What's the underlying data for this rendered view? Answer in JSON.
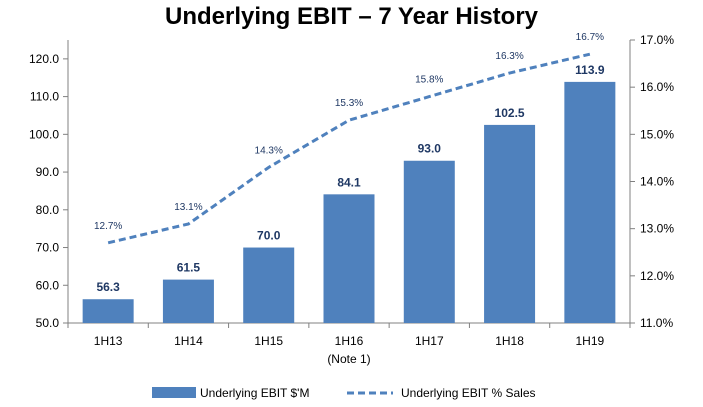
{
  "chart_data": {
    "type": "bar",
    "title": "Underlying EBIT – 7 Year History",
    "categories": [
      "1H13",
      "1H14",
      "1H15",
      "1H16",
      "1H17",
      "1H18",
      "1H19"
    ],
    "category_notes": [
      "",
      "",
      "",
      "(Note 1)",
      "",
      "",
      ""
    ],
    "series": [
      {
        "name": "Underlying EBIT $'M",
        "type": "bar",
        "axis": "left",
        "color": "#4f81bd",
        "values": [
          56.3,
          61.5,
          70.0,
          84.1,
          93.0,
          102.5,
          113.9
        ],
        "labels": [
          "56.3",
          "61.5",
          "70.0",
          "84.1",
          "93.0",
          "102.5",
          "113.9"
        ]
      },
      {
        "name": "Underlying EBIT % Sales",
        "type": "line",
        "style": "dashed",
        "axis": "right",
        "color": "#4f81bd",
        "values": [
          12.7,
          13.1,
          14.3,
          15.3,
          15.8,
          16.3,
          16.7
        ],
        "labels": [
          "12.7%",
          "13.1%",
          "14.3%",
          "15.3%",
          "15.8%",
          "16.3%",
          "16.7%"
        ]
      }
    ],
    "y_left": {
      "ylim": [
        50,
        125
      ],
      "ticks": [
        50,
        60,
        70,
        80,
        90,
        100,
        110,
        120
      ],
      "tick_labels": [
        "50.0",
        "60.0",
        "70.0",
        "80.0",
        "90.0",
        "100.0",
        "110.0",
        "120.0"
      ]
    },
    "y_right": {
      "ylim": [
        11,
        17
      ],
      "ticks": [
        11,
        12,
        13,
        14,
        15,
        16,
        17
      ],
      "tick_labels": [
        "11.0%",
        "12.0%",
        "13.0%",
        "14.0%",
        "15.0%",
        "16.0%",
        "17.0%"
      ]
    },
    "grid": false,
    "legend_position": "bottom"
  }
}
